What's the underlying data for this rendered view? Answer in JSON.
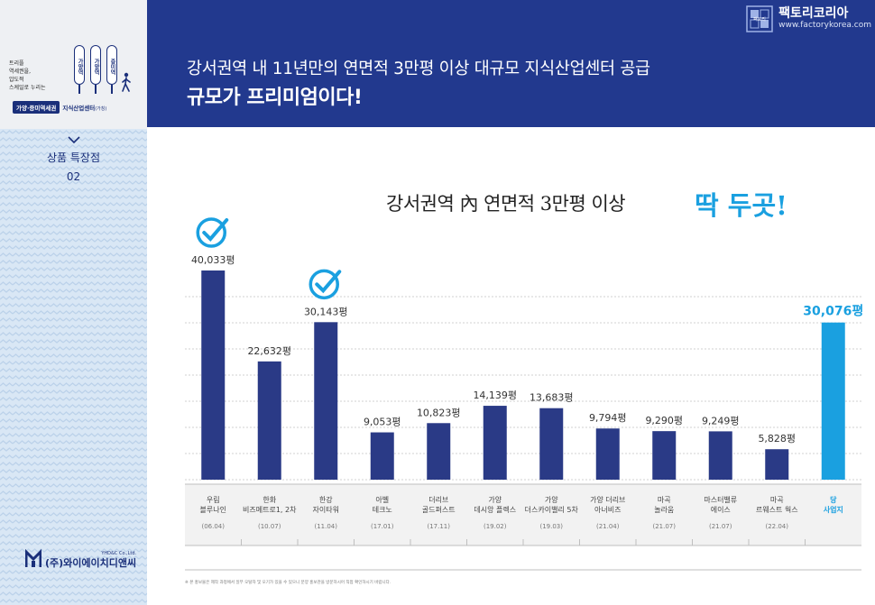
{
  "header": {
    "line1": "강서권역 내 11년만의 연면적 3만평 이상 대규모 지식산업센터 공급",
    "line2": "규모가 프리미엄이다!"
  },
  "brand": {
    "name": "팩토리코리아",
    "url": "www.factorykorea.com",
    "logo_text": "팩토리"
  },
  "sidebar": {
    "copy": [
      "트리플",
      "역세권을,",
      "압도적",
      "스케일로 누리는"
    ],
    "signs": [
      "가양역",
      "가양역",
      "증미역"
    ],
    "pill_a": "가양·증미역세권",
    "pill_b": "지식산업센터",
    "pill_b_small": "(가칭)",
    "section_title": "상품 특장점",
    "section_num": "02",
    "company_small": "YHD&C Co.,Ltd.",
    "company_name": "(주)와이에이치디앤씨"
  },
  "subtitle": "강서권역 內 연면적 3만평 이상",
  "highlight": "딱 두곳!",
  "footnote": "※ 본 홍보물은 제작 과정에서 일부 오탈자 및 오기가 있을 수 있으니 분양 홍보관을 방문하시어 직접 확인하시기 바랍니다.",
  "colors": {
    "header_bg": "#22398e",
    "bar": "#2a3a86",
    "highlight_bar": "#1aa0e0",
    "check": "#1aa0e0"
  },
  "chart_data": {
    "type": "bar",
    "unit": "평",
    "categories": [
      {
        "name": [
          "우림",
          "블루나인"
        ],
        "date": "(06.04)"
      },
      {
        "name": [
          "한화",
          "비즈메트로1, 2차"
        ],
        "date": "(10.07)"
      },
      {
        "name": [
          "한강",
          "자이타워"
        ],
        "date": "(11.04)"
      },
      {
        "name": [
          "아벨",
          "테크노"
        ],
        "date": "(17.01)"
      },
      {
        "name": [
          "더리브",
          "골드퍼스트"
        ],
        "date": "(17.11)"
      },
      {
        "name": [
          "가양",
          "데시앙 플렉스"
        ],
        "date": "(19.02)"
      },
      {
        "name": [
          "가양",
          "더스카이밸리 5차"
        ],
        "date": "(19.03)"
      },
      {
        "name": [
          "가양 더리브",
          "아너비즈"
        ],
        "date": "(21.04)"
      },
      {
        "name": [
          "마곡",
          "놀라움"
        ],
        "date": "(21.07)"
      },
      {
        "name": [
          "마스터밸류",
          "에이스"
        ],
        "date": "(21.07)"
      },
      {
        "name": [
          "마곡",
          "르웨스트 웍스"
        ],
        "date": "(22.04)"
      },
      {
        "name": [
          "당",
          "사업지"
        ],
        "date": ""
      }
    ],
    "values": [
      40033,
      22632,
      30143,
      9053,
      10823,
      14139,
      13683,
      9794,
      9290,
      9249,
      5828,
      30076
    ],
    "value_labels": [
      "40,033평",
      "22,632평",
      "30,143평",
      "9,053평",
      "10,823평",
      "14,139평",
      "13,683평",
      "9,794평",
      "9,290평",
      "9,249평",
      "5,828평",
      "30,076평"
    ],
    "checked": [
      true,
      false,
      true,
      false,
      false,
      false,
      false,
      false,
      false,
      false,
      false,
      false
    ],
    "highlighted": [
      false,
      false,
      false,
      false,
      false,
      false,
      false,
      false,
      false,
      false,
      false,
      true
    ],
    "ylim": [
      0,
      40033
    ],
    "grid": true
  }
}
